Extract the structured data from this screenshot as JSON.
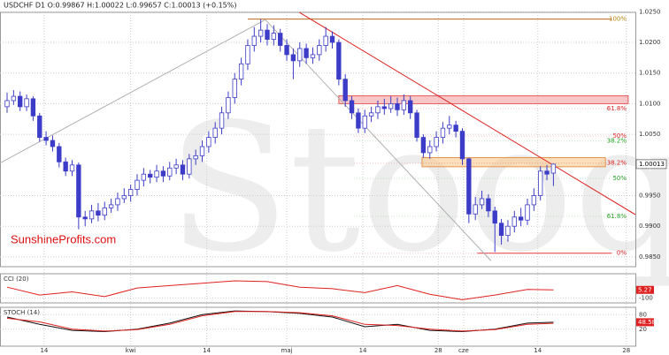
{
  "chart_data": {
    "type": "candlestick",
    "header": "USDCHF  D1  O:0.99867  H:1.00022  L:0.99657  C:1.00013  (+0.15%)",
    "watermark": "Stooq",
    "brand": "SunshineProfits.com",
    "up_color": "#ffffff",
    "down_color": "#3c3cc8",
    "edge_color": "#3c3cc8",
    "ohlc": [
      [
        1.0095,
        1.0118,
        1.0085,
        1.0105
      ],
      [
        1.0105,
        1.0122,
        1.0098,
        1.0112
      ],
      [
        1.0112,
        1.012,
        1.0088,
        1.0095
      ],
      [
        1.0095,
        1.0115,
        1.0088,
        1.0108
      ],
      [
        1.0108,
        1.0112,
        1.0072,
        1.008
      ],
      [
        1.008,
        1.0085,
        1.0038,
        1.0045
      ],
      [
        1.0045,
        1.0055,
        1.0032,
        1.004
      ],
      [
        1.004,
        1.0048,
        1.0022,
        1.003
      ],
      [
        1.003,
        1.0036,
        0.9996,
        1.0005
      ],
      [
        1.0005,
        1.0012,
        0.9982,
        0.999
      ],
      [
        0.999,
        1.0008,
        0.9982,
        1.0
      ],
      [
        1.0,
        1.0004,
        0.9895,
        0.9915
      ],
      [
        0.9915,
        0.9925,
        0.99,
        0.9912
      ],
      [
        0.9912,
        0.9935,
        0.9905,
        0.9925
      ],
      [
        0.9925,
        0.9938,
        0.9908,
        0.9918
      ],
      [
        0.9918,
        0.994,
        0.991,
        0.993
      ],
      [
        0.993,
        0.9945,
        0.9922,
        0.9935
      ],
      [
        0.9935,
        0.9955,
        0.9925,
        0.9945
      ],
      [
        0.9945,
        0.9962,
        0.9938,
        0.995
      ],
      [
        0.995,
        0.9968,
        0.994,
        0.996
      ],
      [
        0.996,
        0.9985,
        0.995,
        0.9975
      ],
      [
        0.9975,
        0.9995,
        0.9965,
        0.9985
      ],
      [
        0.9985,
        0.9992,
        0.997,
        0.998
      ],
      [
        0.998,
        1.0,
        0.9972,
        0.999
      ],
      [
        0.999,
        0.9998,
        0.9972,
        0.9982
      ],
      [
        0.9982,
        1.0005,
        0.9975,
        0.9995
      ],
      [
        0.9995,
        1.001,
        0.9985,
        1.0
      ],
      [
        1.0,
        1.0008,
        0.9975,
        0.9985
      ],
      [
        0.9985,
        1.0018,
        0.9978,
        1.001
      ],
      [
        1.001,
        1.0025,
        1.0,
        1.0015
      ],
      [
        1.0015,
        1.004,
        1.0005,
        1.003
      ],
      [
        1.003,
        1.0055,
        1.002,
        1.0045
      ],
      [
        1.0045,
        1.007,
        1.0035,
        1.006
      ],
      [
        1.006,
        1.0095,
        1.005,
        1.0085
      ],
      [
        1.0085,
        1.012,
        1.0075,
        1.011
      ],
      [
        1.011,
        1.015,
        1.01,
        1.014
      ],
      [
        1.014,
        1.0175,
        1.013,
        1.0165
      ],
      [
        1.0165,
        1.0205,
        1.0155,
        1.0195
      ],
      [
        1.0195,
        1.0225,
        1.0185,
        1.021
      ],
      [
        1.021,
        1.0238,
        1.02,
        1.022
      ],
      [
        1.022,
        1.023,
        1.0195,
        1.0205
      ],
      [
        1.0205,
        1.0228,
        1.0195,
        1.0215
      ],
      [
        1.0215,
        1.0222,
        1.0185,
        1.0195
      ],
      [
        1.0195,
        1.0205,
        1.017,
        1.018
      ],
      [
        1.018,
        1.019,
        1.014,
        1.017
      ],
      [
        1.017,
        1.02,
        1.016,
        1.019
      ],
      [
        1.019,
        1.0198,
        1.0165,
        1.0175
      ],
      [
        1.0175,
        1.0192,
        1.0165,
        1.018
      ],
      [
        1.018,
        1.0205,
        1.017,
        1.0195
      ],
      [
        1.0195,
        1.0225,
        1.0185,
        1.021
      ],
      [
        1.021,
        1.0218,
        1.019,
        1.02
      ],
      [
        1.02,
        1.0205,
        1.013,
        1.014
      ],
      [
        1.014,
        1.0148,
        1.0095,
        1.0105
      ],
      [
        1.0105,
        1.0112,
        1.0075,
        1.0085
      ],
      [
        1.0085,
        1.0092,
        1.0052,
        1.006
      ],
      [
        1.006,
        1.009,
        1.0052,
        1.008
      ],
      [
        1.008,
        1.0095,
        1.007,
        1.0085
      ],
      [
        1.0085,
        1.0105,
        1.0075,
        1.0095
      ],
      [
        1.0095,
        1.0108,
        1.0082,
        1.0092
      ],
      [
        1.0092,
        1.0112,
        1.0085,
        1.01
      ],
      [
        1.01,
        1.011,
        1.008,
        1.009
      ],
      [
        1.009,
        1.0115,
        1.0082,
        1.0105
      ],
      [
        1.0105,
        1.0112,
        1.0075,
        1.0085
      ],
      [
        1.0085,
        1.009,
        1.0038,
        1.0045
      ],
      [
        1.0045,
        1.005,
        1.0012,
        1.002
      ],
      [
        1.002,
        1.004,
        1.001,
        1.003
      ],
      [
        1.003,
        1.0055,
        1.0022,
        1.0045
      ],
      [
        1.0045,
        1.007,
        1.0035,
        1.006
      ],
      [
        1.006,
        1.008,
        1.005,
        1.0065
      ],
      [
        1.0065,
        1.0072,
        1.0045,
        1.0055
      ],
      [
        1.0055,
        1.006,
        1.0,
        1.001
      ],
      [
        1.001,
        1.0012,
        0.9905,
        0.992
      ],
      [
        0.992,
        0.9948,
        0.991,
        0.9935
      ],
      [
        0.9935,
        0.9958,
        0.9928,
        0.9945
      ],
      [
        0.9945,
        0.9952,
        0.9915,
        0.9925
      ],
      [
        0.9925,
        0.9932,
        0.9858,
        0.9905
      ],
      [
        0.9905,
        0.9912,
        0.987,
        0.9885
      ],
      [
        0.9885,
        0.991,
        0.9875,
        0.99
      ],
      [
        0.99,
        0.9925,
        0.989,
        0.9915
      ],
      [
        0.9915,
        0.993,
        0.99,
        0.991
      ],
      [
        0.991,
        0.9945,
        0.9902,
        0.9935
      ],
      [
        0.9935,
        0.9962,
        0.9925,
        0.995
      ],
      [
        0.995,
        0.9998,
        0.9942,
        0.999
      ],
      [
        0.999,
        1.0,
        0.9975,
        0.9985
      ],
      [
        0.99867,
        1.00022,
        0.99657,
        1.00013
      ]
    ],
    "xlim": [
      -1.09,
      96.6
    ],
    "xticks": [
      {
        "value": 5.7,
        "label": "14"
      },
      {
        "value": 19,
        "label": "kwi"
      },
      {
        "value": 30.7,
        "label": "14"
      },
      {
        "value": 43,
        "label": "maj"
      },
      {
        "value": 54.7,
        "label": "14"
      },
      {
        "value": 66.3,
        "label": "28"
      },
      {
        "value": 70.2,
        "label": "cze"
      },
      {
        "value": 81.6,
        "label": "14"
      },
      {
        "value": 95.2,
        "label": "28"
      }
    ],
    "ylim": [
      0.9834,
      1.0249
    ],
    "yticks": [
      {
        "value": 1.025,
        "label": "1.0250"
      },
      {
        "value": 1.02,
        "label": "1.0200"
      },
      {
        "value": 1.015,
        "label": "1.0150"
      },
      {
        "value": 1.01,
        "label": "1.0100"
      },
      {
        "value": 1.005,
        "label": "1.0050"
      },
      {
        "value": 0.995,
        "label": "0.9950"
      },
      {
        "value": 0.99,
        "label": "0.9900"
      },
      {
        "value": 0.985,
        "label": "0.9850"
      }
    ],
    "grid": true,
    "last_price": 1.00013,
    "fib_levels": [
      {
        "price": 1.0238,
        "text": "100%",
        "color": "#b8860b"
      },
      {
        "price": 1.0092,
        "text": "61.8%",
        "color": "#e02020"
      },
      {
        "price": 1.0047,
        "text": "50%",
        "color": "#e02020"
      },
      {
        "price": 1.0039,
        "text": "38.2%",
        "color": "#20a020"
      },
      {
        "price": 1.0003,
        "text": "38.2%",
        "color": "#e02020"
      },
      {
        "price": 0.9978,
        "text": "50%",
        "color": "#20a020"
      },
      {
        "price": 0.9916,
        "text": "61.8%",
        "color": "#20a020"
      },
      {
        "price": 0.9856,
        "text": "0%",
        "color": "#e02020"
      }
    ],
    "zones": [
      {
        "x0": 51,
        "x1": 95.5,
        "y0": 1.01,
        "y1": 1.0113,
        "color": "#f4a0a0",
        "edge": "#e04040"
      },
      {
        "x0": 63.8,
        "x1": 92,
        "y0": 0.9997,
        "y1": 1.0012,
        "color": "#f8c890",
        "edge": "#e08030"
      }
    ],
    "lines": [
      {
        "x0": 37,
        "y0": 1.0238,
        "x1": 93,
        "y1": 1.0238,
        "color": "#b86a1a"
      },
      {
        "x0": 72.3,
        "y0": 0.9856,
        "x1": 93,
        "y1": 0.9856,
        "color": "#e04040"
      },
      {
        "x0": 41.8,
        "y0": 1.0269,
        "x1": 96.6,
        "y1": 0.9919,
        "color": "#e02020"
      },
      {
        "x0": -1.09,
        "y0": 1.0003,
        "x1": 39.7,
        "y1": 1.0237,
        "color": "#b0b0b0"
      },
      {
        "x0": 39.7,
        "y0": 1.0237,
        "x1": 74.4,
        "y1": 0.98437,
        "color": "#b0b0b0"
      }
    ],
    "indicators": [
      {
        "name": "CCI (20)",
        "ylim": [
          -160,
          210
        ],
        "yticks": [
          -100
        ],
        "x": [
          0,
          5,
          10,
          15,
          20,
          25,
          30,
          35,
          40,
          45,
          50,
          55,
          60,
          65,
          70,
          75,
          80,
          84
        ],
        "series": [
          {
            "color": "#e02020",
            "values": [
              40,
              -60,
              -20,
              -80,
              30,
              60,
              90,
              120,
              110,
              40,
              20,
              -30,
              60,
              -50,
              -120,
              -60,
              10,
              5.27
            ]
          }
        ],
        "box_color": "#e02020"
      },
      {
        "name": "STOCH (14)",
        "ylim": [
          -50,
          110
        ],
        "yticks": [
          80,
          20
        ],
        "x": [
          0,
          5,
          10,
          15,
          20,
          25,
          30,
          35,
          40,
          45,
          50,
          55,
          60,
          65,
          70,
          75,
          80,
          84
        ],
        "series": [
          {
            "color": "#111111",
            "values": [
              70,
              40,
              15,
              10,
              20,
              45,
              80,
              95,
              92,
              85,
              70,
              30,
              40,
              15,
              10,
              20,
              45,
              48.58
            ]
          },
          {
            "color": "#e02020",
            "values": [
              65,
              50,
              20,
              12,
              18,
              40,
              75,
              93,
              93,
              88,
              75,
              40,
              35,
              20,
              12,
              18,
              40,
              44
            ]
          }
        ],
        "box_color": "#e02020"
      }
    ]
  }
}
